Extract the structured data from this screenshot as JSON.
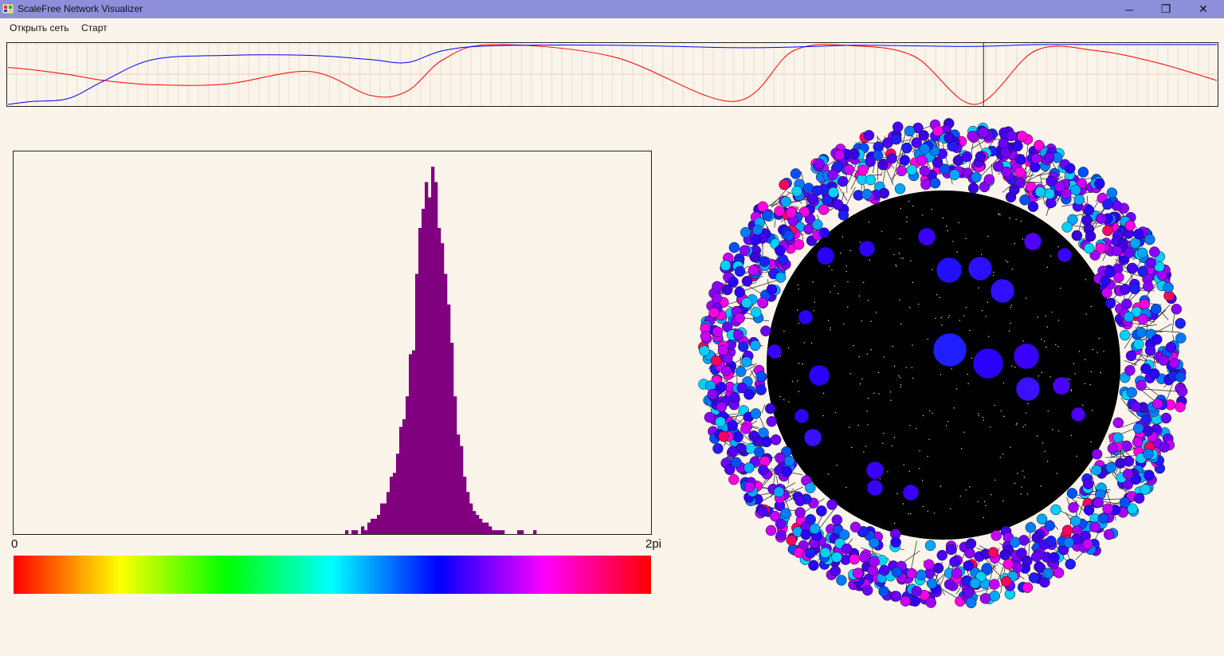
{
  "window": {
    "title": "ScaleFree Network Visualizer"
  },
  "window_controls": {
    "minimize": "─",
    "maximize": "❐",
    "close": "✕"
  },
  "menu": {
    "items": [
      "Открыть сеть",
      "Старт"
    ]
  },
  "histogram": {
    "x_min_label": "0",
    "x_max_label": "2pi",
    "bar_color": "#800080"
  },
  "colorbar": {
    "stops": [
      "#ff0000",
      "#ffff00",
      "#00ff00",
      "#00ffff",
      "#0000ff",
      "#ff00ff",
      "#ff0000"
    ]
  },
  "chart_data": [
    {
      "type": "line",
      "title": "",
      "x": [
        0,
        0.02,
        0.05,
        0.08,
        0.12,
        0.18,
        0.25,
        0.3,
        0.33,
        0.36,
        0.4,
        0.5,
        0.6,
        0.65,
        0.7,
        0.75,
        0.8,
        0.85,
        0.9,
        0.95,
        1
      ],
      "series": [
        {
          "name": "red",
          "color": "#ff0000",
          "values": [
            0.62,
            0.58,
            0.5,
            0.4,
            0.33,
            0.34,
            0.55,
            0.15,
            0.22,
            0.75,
            1.0,
            0.8,
            0.05,
            0.9,
            0.98,
            0.8,
            0.0,
            0.9,
            0.9,
            0.7,
            0.4
          ]
        },
        {
          "name": "blue",
          "color": "#0000ff",
          "values": [
            0.0,
            0.05,
            0.1,
            0.4,
            0.75,
            0.82,
            0.82,
            0.75,
            0.7,
            0.9,
            0.98,
            0.99,
            0.95,
            0.96,
            0.99,
            0.98,
            0.97,
            1.0,
            1.0,
            1.0,
            1.0
          ]
        }
      ],
      "cursor_x": 0.807,
      "ylim": [
        0,
        1
      ]
    },
    {
      "type": "bar",
      "xlabel_min": "0",
      "xlabel_max": "2pi",
      "ylim": [
        0,
        100
      ],
      "values": [
        1,
        0,
        1,
        1,
        0,
        2,
        1,
        3,
        4,
        4,
        5,
        8,
        8,
        11,
        15,
        16,
        21,
        28,
        30,
        36,
        47,
        48,
        68,
        80,
        85,
        92,
        88,
        96,
        92,
        80,
        76,
        68,
        60,
        50,
        36,
        26,
        23,
        15,
        11,
        8,
        6,
        5,
        4,
        3,
        3,
        2,
        1,
        1,
        1,
        1,
        0,
        0,
        0,
        0,
        1,
        1,
        0,
        0,
        0,
        1
      ],
      "value_start_index": 104,
      "bins_total": 200
    }
  ]
}
